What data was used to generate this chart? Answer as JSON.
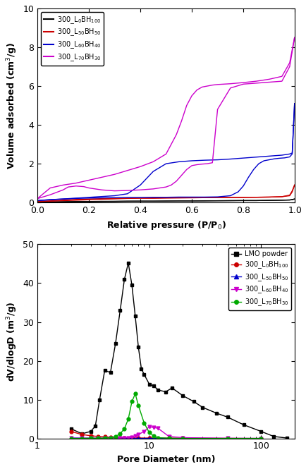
{
  "top_plot": {
    "xlabel": "Relative pressure (P/P$_0$)",
    "ylabel": "Volume adsorbed (cm$^3$/g)",
    "ylim": [
      0,
      10
    ],
    "xlim": [
      0.0,
      1.0
    ],
    "series": [
      {
        "label": "300_L$_0$BH$_{100}$",
        "color": "black",
        "adsorption_x": [
          0.0,
          0.05,
          0.1,
          0.15,
          0.2,
          0.25,
          0.3,
          0.35,
          0.4,
          0.45,
          0.5,
          0.55,
          0.6,
          0.65,
          0.7,
          0.75,
          0.8,
          0.85,
          0.9,
          0.95,
          0.98,
          0.99,
          0.999
        ],
        "adsorption_y": [
          0.02,
          0.03,
          0.04,
          0.05,
          0.05,
          0.06,
          0.06,
          0.07,
          0.07,
          0.07,
          0.08,
          0.08,
          0.08,
          0.09,
          0.09,
          0.1,
          0.1,
          0.1,
          0.11,
          0.12,
          0.13,
          0.15,
          0.18
        ],
        "desorption_x": [
          0.999,
          0.99,
          0.98,
          0.95,
          0.9,
          0.85,
          0.8,
          0.75,
          0.7,
          0.65,
          0.6,
          0.55,
          0.5,
          0.45,
          0.4,
          0.0
        ],
        "desorption_y": [
          0.18,
          0.15,
          0.13,
          0.12,
          0.11,
          0.1,
          0.1,
          0.09,
          0.09,
          0.08,
          0.08,
          0.08,
          0.07,
          0.07,
          0.07,
          0.02
        ]
      },
      {
        "label": "300_L$_{50}$BH$_{50}$",
        "color": "#cc0000",
        "adsorption_x": [
          0.0,
          0.05,
          0.1,
          0.15,
          0.2,
          0.25,
          0.3,
          0.35,
          0.4,
          0.45,
          0.5,
          0.55,
          0.6,
          0.65,
          0.7,
          0.75,
          0.8,
          0.85,
          0.9,
          0.95,
          0.98,
          0.99,
          0.999
        ],
        "adsorption_y": [
          0.05,
          0.08,
          0.12,
          0.16,
          0.18,
          0.2,
          0.21,
          0.22,
          0.23,
          0.23,
          0.24,
          0.24,
          0.25,
          0.25,
          0.26,
          0.26,
          0.27,
          0.27,
          0.28,
          0.3,
          0.35,
          0.55,
          0.9
        ],
        "desorption_x": [
          0.999,
          0.99,
          0.98,
          0.95,
          0.9,
          0.85,
          0.8,
          0.75,
          0.7,
          0.65,
          0.6,
          0.55,
          0.5,
          0.45,
          0.4,
          0.35,
          0.0
        ],
        "desorption_y": [
          0.9,
          0.6,
          0.38,
          0.3,
          0.28,
          0.27,
          0.26,
          0.26,
          0.25,
          0.25,
          0.24,
          0.24,
          0.23,
          0.22,
          0.22,
          0.21,
          0.05
        ]
      },
      {
        "label": "300_L$_{60}$BH$_{40}$",
        "color": "#0000cc",
        "adsorption_x": [
          0.0,
          0.05,
          0.1,
          0.15,
          0.2,
          0.25,
          0.3,
          0.35,
          0.4,
          0.45,
          0.5,
          0.55,
          0.6,
          0.65,
          0.7,
          0.75,
          0.78,
          0.8,
          0.82,
          0.84,
          0.86,
          0.88,
          0.9,
          0.92,
          0.94,
          0.96,
          0.98,
          0.99,
          0.999
        ],
        "adsorption_y": [
          0.1,
          0.15,
          0.18,
          0.21,
          0.23,
          0.24,
          0.25,
          0.26,
          0.26,
          0.27,
          0.27,
          0.28,
          0.28,
          0.28,
          0.29,
          0.35,
          0.55,
          0.85,
          1.3,
          1.7,
          2.0,
          2.15,
          2.2,
          2.25,
          2.28,
          2.3,
          2.35,
          2.5,
          5.1
        ],
        "desorption_x": [
          0.999,
          0.99,
          0.98,
          0.97,
          0.96,
          0.95,
          0.93,
          0.91,
          0.89,
          0.87,
          0.85,
          0.83,
          0.81,
          0.79,
          0.77,
          0.75,
          0.7,
          0.65,
          0.6,
          0.55,
          0.5,
          0.45,
          0.4,
          0.35,
          0.3,
          0.0
        ],
        "desorption_y": [
          5.1,
          2.55,
          2.5,
          2.48,
          2.46,
          2.44,
          2.42,
          2.4,
          2.38,
          2.36,
          2.34,
          2.32,
          2.3,
          2.28,
          2.26,
          2.24,
          2.2,
          2.18,
          2.15,
          2.1,
          2.0,
          1.6,
          0.9,
          0.45,
          0.35,
          0.1
        ]
      },
      {
        "label": "300_L$_{70}$BH$_{30}$",
        "color": "#cc00cc",
        "adsorption_x": [
          0.0,
          0.05,
          0.1,
          0.12,
          0.15,
          0.18,
          0.2,
          0.25,
          0.3,
          0.35,
          0.4,
          0.45,
          0.5,
          0.52,
          0.54,
          0.56,
          0.58,
          0.6,
          0.62,
          0.64,
          0.66,
          0.68,
          0.7,
          0.75,
          0.8,
          0.85,
          0.9,
          0.95,
          0.98,
          0.999
        ],
        "adsorption_y": [
          0.2,
          0.4,
          0.65,
          0.8,
          0.85,
          0.82,
          0.75,
          0.65,
          0.6,
          0.62,
          0.65,
          0.7,
          0.8,
          0.9,
          1.1,
          1.4,
          1.7,
          1.9,
          1.95,
          1.98,
          2.0,
          2.05,
          4.8,
          5.9,
          6.1,
          6.15,
          6.2,
          6.25,
          7.0,
          8.5
        ],
        "desorption_x": [
          0.999,
          0.98,
          0.95,
          0.9,
          0.85,
          0.8,
          0.75,
          0.7,
          0.68,
          0.66,
          0.64,
          0.62,
          0.6,
          0.58,
          0.56,
          0.54,
          0.52,
          0.5,
          0.45,
          0.4,
          0.35,
          0.3,
          0.25,
          0.2,
          0.15,
          0.1,
          0.05,
          0.0
        ],
        "desorption_y": [
          8.5,
          7.2,
          6.5,
          6.35,
          6.25,
          6.18,
          6.12,
          6.08,
          6.05,
          6.0,
          5.95,
          5.8,
          5.5,
          5.0,
          4.2,
          3.5,
          3.0,
          2.5,
          2.1,
          1.85,
          1.65,
          1.45,
          1.3,
          1.15,
          1.0,
          0.9,
          0.75,
          0.2
        ]
      }
    ]
  },
  "bottom_plot": {
    "xlabel": "Pore Diameter (nm)",
    "ylabel": "dV/dlogD (m$^3$/g)",
    "ylim": [
      0,
      50
    ],
    "xlim_log": [
      2,
      200
    ],
    "series": [
      {
        "label": "LMO powder",
        "color": "black",
        "marker": "s",
        "x": [
          2.0,
          2.5,
          3.0,
          3.3,
          3.6,
          4.0,
          4.5,
          5.0,
          5.5,
          6.0,
          6.5,
          7.0,
          7.5,
          8.0,
          8.5,
          9.0,
          10.0,
          11.0,
          12.0,
          14.0,
          16.0,
          20.0,
          25.0,
          30.0,
          40.0,
          50.0,
          70.0,
          100.0,
          130.0,
          170.0
        ],
        "y": [
          2.5,
          1.2,
          1.8,
          3.2,
          10.0,
          17.5,
          17.0,
          24.5,
          33.0,
          41.0,
          45.2,
          39.5,
          31.5,
          23.5,
          18.0,
          16.5,
          14.0,
          13.5,
          12.5,
          12.0,
          13.0,
          11.0,
          9.5,
          8.0,
          6.5,
          5.5,
          3.5,
          1.8,
          0.5,
          0.1
        ]
      },
      {
        "label": "300_L$_0$BH$_{100}$",
        "color": "#cc0000",
        "marker": "o",
        "x": [
          2.0,
          2.5,
          3.0,
          3.5,
          4.0,
          4.5,
          5.0,
          5.5,
          6.0,
          7.0,
          8.0,
          10.0,
          15.0,
          20.0,
          50.0,
          100.0
        ],
        "y": [
          1.8,
          1.0,
          0.7,
          0.5,
          0.4,
          0.3,
          0.25,
          0.2,
          0.18,
          0.15,
          0.12,
          0.1,
          0.08,
          0.05,
          0.02,
          0.0
        ]
      },
      {
        "label": "300_L$_{50}$BH$_{50}$",
        "color": "#0000cc",
        "marker": "^",
        "x": [
          2.0,
          2.5,
          3.0,
          3.5,
          4.0,
          4.5,
          5.0,
          5.5,
          6.0,
          7.0,
          8.0,
          10.0,
          15.0,
          20.0,
          50.0,
          100.0
        ],
        "y": [
          0.1,
          0.08,
          0.06,
          0.05,
          0.04,
          0.03,
          0.03,
          0.02,
          0.02,
          0.02,
          0.01,
          0.01,
          0.01,
          0.0,
          0.0,
          0.0
        ]
      },
      {
        "label": "300_L$_{60}$BH$_{40}$",
        "color": "#cc00cc",
        "marker": "v",
        "x": [
          2.0,
          2.5,
          3.0,
          3.5,
          4.0,
          4.5,
          5.0,
          5.5,
          6.0,
          6.5,
          7.0,
          7.5,
          8.0,
          9.0,
          10.0,
          11.0,
          12.0,
          15.0,
          20.0,
          50.0,
          100.0
        ],
        "y": [
          0.05,
          0.05,
          0.05,
          0.05,
          0.05,
          0.05,
          0.05,
          0.1,
          0.15,
          0.2,
          0.25,
          0.6,
          1.0,
          1.8,
          3.0,
          2.8,
          2.6,
          0.5,
          0.2,
          0.05,
          0.0
        ]
      },
      {
        "label": "300_L$_{70}$BH$_{30}$",
        "color": "#00aa00",
        "marker": "o",
        "x": [
          2.0,
          2.5,
          3.0,
          3.5,
          4.0,
          4.5,
          5.0,
          5.5,
          6.0,
          6.5,
          7.0,
          7.5,
          8.0,
          9.0,
          10.0,
          11.0,
          12.0,
          15.0,
          20.0,
          50.0,
          100.0
        ],
        "y": [
          0.0,
          0.0,
          0.05,
          0.05,
          0.1,
          0.2,
          0.5,
          1.2,
          2.5,
          5.0,
          9.5,
          11.5,
          8.5,
          4.0,
          1.5,
          0.6,
          0.2,
          0.05,
          0.0,
          0.0,
          0.0
        ]
      }
    ]
  }
}
